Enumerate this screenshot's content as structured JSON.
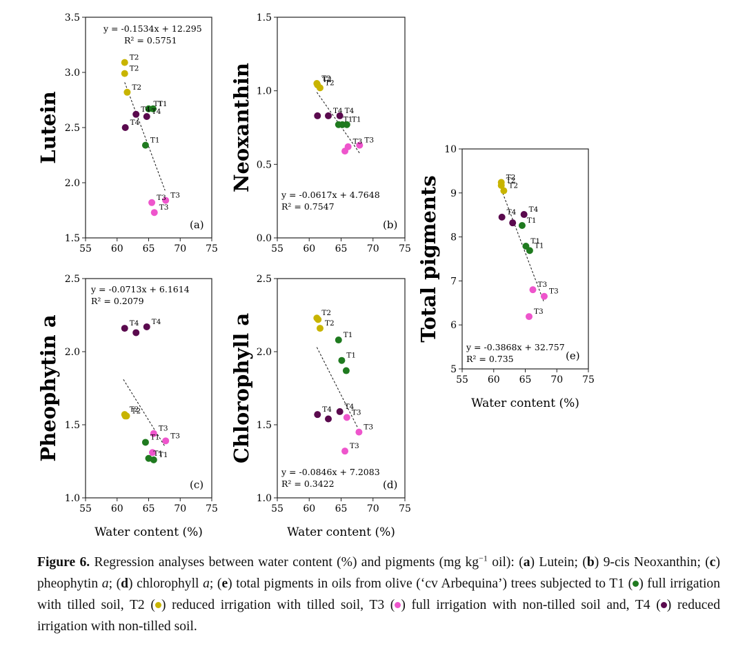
{
  "figure": {
    "colors": {
      "T1": "#1f7a1f",
      "T2": "#c8b400",
      "T3": "#ee55cc",
      "T4": "#5a0a4e"
    },
    "xlabel": "Water content (%)",
    "caption": {
      "label": "Figure 6.",
      "intro": " Regression analyses between water content (%) and pigments (mg kg",
      "sup": "−1",
      "after_sup": " oil): (",
      "a": "a",
      "a_text": ") Lutein; (",
      "b": "b",
      "b_text": ") 9-cis Neoxanthin; (",
      "c": "c",
      "c_text": ") pheophytin ",
      "c_ital": "a",
      "d_pre": "; (",
      "d": "d",
      "d_text": ") chlorophyll ",
      "d_ital": "a",
      "e_pre": "; (",
      "e": "e",
      "e_text": ") total pigments in oils from olive (‘cv Arbequina’) trees subjected to T1 (",
      "t1_text": ") full irrigation with tilled soil, T2 (",
      "t2_text": ") reduced irrigation with tilled soil, T3 (",
      "t3_text": ") full irrigation with non-tilled soil and, T4 (",
      "t4_text": ") reduced irrigation with non-tilled soil."
    }
  },
  "chart_data": [
    {
      "type": "scatter",
      "panel": "(a)",
      "ylabel": "Lutein",
      "xlim": [
        55,
        75
      ],
      "ylim": [
        1.5,
        3.5
      ],
      "xticks": [
        "55",
        "60",
        "65",
        "70",
        "75"
      ],
      "yticks": [
        "1.5",
        "2.0",
        "2.5",
        "3.0",
        "3.5"
      ],
      "equation": "y = -0.1534x + 12.295",
      "r2": "R² = 0.5751",
      "trend": [
        [
          61.2,
          2.91
        ],
        [
          67.6,
          1.93
        ]
      ],
      "points": [
        {
          "g": "T2",
          "x": 61.2,
          "y": 3.09,
          "label": "T2"
        },
        {
          "g": "T2",
          "x": 61.2,
          "y": 2.99,
          "label": "T2"
        },
        {
          "g": "T2",
          "x": 61.6,
          "y": 2.82,
          "label": "T2"
        },
        {
          "g": "T1",
          "x": 65.0,
          "y": 2.67,
          "label": "T1"
        },
        {
          "g": "T1",
          "x": 65.7,
          "y": 2.67,
          "label": "T1"
        },
        {
          "g": "T4",
          "x": 63.0,
          "y": 2.62,
          "label": "T4"
        },
        {
          "g": "T4",
          "x": 64.7,
          "y": 2.6,
          "label": "T4"
        },
        {
          "g": "T4",
          "x": 61.3,
          "y": 2.5,
          "label": "T4"
        },
        {
          "g": "T1",
          "x": 64.5,
          "y": 2.34,
          "label": "T1"
        },
        {
          "g": "T3",
          "x": 67.7,
          "y": 1.84,
          "label": "T3"
        },
        {
          "g": "T3",
          "x": 65.5,
          "y": 1.82,
          "label": "T3"
        },
        {
          "g": "T3",
          "x": 65.9,
          "y": 1.73,
          "label": "T3"
        }
      ]
    },
    {
      "type": "scatter",
      "panel": "(b)",
      "ylabel": "Neoxanthin",
      "xlim": [
        55,
        75
      ],
      "ylim": [
        0,
        1.5
      ],
      "xticks": [
        "55",
        "60",
        "65",
        "70",
        "75"
      ],
      "yticks": [
        "0.0",
        "0.5",
        "1.0",
        "1.5"
      ],
      "equation": "y = -0.0617x + 4.7648",
      "r2": "R² = 0.7547",
      "trend": [
        [
          61.2,
          0.99
        ],
        [
          68.0,
          0.57
        ]
      ],
      "points": [
        {
          "g": "T2",
          "x": 61.2,
          "y": 1.05,
          "label": "T2"
        },
        {
          "g": "T2",
          "x": 61.3,
          "y": 1.04,
          "label": "T2"
        },
        {
          "g": "T2",
          "x": 61.7,
          "y": 1.02,
          "label": "T2"
        },
        {
          "g": "T4",
          "x": 61.3,
          "y": 0.83,
          "label": ""
        },
        {
          "g": "T4",
          "x": 63.0,
          "y": 0.83,
          "label": "T4"
        },
        {
          "g": "T4",
          "x": 64.8,
          "y": 0.83,
          "label": "T4"
        },
        {
          "g": "T1",
          "x": 64.6,
          "y": 0.77,
          "label": "T1"
        },
        {
          "g": "T1",
          "x": 65.2,
          "y": 0.77,
          "label": ""
        },
        {
          "g": "T1",
          "x": 65.9,
          "y": 0.77,
          "label": "T1"
        },
        {
          "g": "T3",
          "x": 67.9,
          "y": 0.63,
          "label": "T3"
        },
        {
          "g": "T3",
          "x": 66.1,
          "y": 0.62,
          "label": "T3"
        },
        {
          "g": "T3",
          "x": 65.6,
          "y": 0.59,
          "label": ""
        }
      ]
    },
    {
      "type": "scatter",
      "panel": "(c)",
      "ylabel": "Pheophytin a",
      "xlim": [
        55,
        75
      ],
      "ylim": [
        1.0,
        2.5
      ],
      "xticks": [
        "55",
        "60",
        "65",
        "70",
        "75"
      ],
      "yticks": [
        "1.0",
        "1.5",
        "2.0",
        "2.5"
      ],
      "equation": "y =  -0.0713x + 6.1614",
      "r2": "R² = 0.2079",
      "trend": [
        [
          61.0,
          1.81
        ],
        [
          67.6,
          1.35
        ]
      ],
      "points": [
        {
          "g": "T4",
          "x": 61.2,
          "y": 2.16,
          "label": "T4"
        },
        {
          "g": "T4",
          "x": 63.0,
          "y": 2.13,
          "label": ""
        },
        {
          "g": "T4",
          "x": 64.7,
          "y": 2.17,
          "label": "T4"
        },
        {
          "g": "T2",
          "x": 61.2,
          "y": 1.57,
          "label": "T2"
        },
        {
          "g": "T2",
          "x": 61.3,
          "y": 1.56,
          "label": ""
        },
        {
          "g": "T2",
          "x": 61.5,
          "y": 1.56,
          "label": "T2"
        },
        {
          "g": "T3",
          "x": 65.8,
          "y": 1.44,
          "label": "T3"
        },
        {
          "g": "T3",
          "x": 67.7,
          "y": 1.39,
          "label": "T3"
        },
        {
          "g": "T3",
          "x": 65.6,
          "y": 1.31,
          "label": ""
        },
        {
          "g": "T1",
          "x": 64.5,
          "y": 1.38,
          "label": "T1"
        },
        {
          "g": "T1",
          "x": 65.0,
          "y": 1.27,
          "label": "T1"
        },
        {
          "g": "T1",
          "x": 65.8,
          "y": 1.26,
          "label": "T1"
        }
      ]
    },
    {
      "type": "scatter",
      "panel": "(d)",
      "ylabel": "Chlorophyll a",
      "xlim": [
        55,
        75
      ],
      "ylim": [
        1.0,
        2.5
      ],
      "xticks": [
        "55",
        "60",
        "65",
        "70",
        "75"
      ],
      "yticks": [
        "1.0",
        "1.5",
        "2.0",
        "2.5"
      ],
      "equation": "y = -0.0846x + 7.2083",
      "r2": "R² = 0.3422",
      "trend": [
        [
          61.2,
          2.03
        ],
        [
          67.6,
          1.48
        ]
      ],
      "points": [
        {
          "g": "T2",
          "x": 61.2,
          "y": 2.23,
          "label": "T2"
        },
        {
          "g": "T2",
          "x": 61.4,
          "y": 2.22,
          "label": ""
        },
        {
          "g": "T2",
          "x": 61.7,
          "y": 2.16,
          "label": "T2"
        },
        {
          "g": "T1",
          "x": 64.6,
          "y": 2.08,
          "label": "T1"
        },
        {
          "g": "T1",
          "x": 65.1,
          "y": 1.94,
          "label": "T1"
        },
        {
          "g": "T1",
          "x": 65.8,
          "y": 1.87,
          "label": ""
        },
        {
          "g": "T4",
          "x": 61.3,
          "y": 1.57,
          "label": "T4"
        },
        {
          "g": "T4",
          "x": 63.0,
          "y": 1.54,
          "label": ""
        },
        {
          "g": "T4",
          "x": 64.8,
          "y": 1.59,
          "label": "T4"
        },
        {
          "g": "T3",
          "x": 65.9,
          "y": 1.55,
          "label": "T3"
        },
        {
          "g": "T3",
          "x": 67.8,
          "y": 1.45,
          "label": "T3"
        },
        {
          "g": "T3",
          "x": 65.6,
          "y": 1.32,
          "label": "T3"
        }
      ]
    },
    {
      "type": "scatter",
      "panel": "(e)",
      "ylabel": "Total pigments",
      "xlim": [
        55,
        75
      ],
      "ylim": [
        5,
        10
      ],
      "xticks": [
        "55",
        "60",
        "65",
        "70",
        "75"
      ],
      "yticks": [
        "5",
        "6",
        "7",
        "8",
        "9",
        "10"
      ],
      "equation": "y = -0.3868x + 32.757",
      "r2": "R² = 0.735",
      "trend": [
        [
          61.0,
          9.16
        ],
        [
          67.9,
          6.54
        ]
      ],
      "points": [
        {
          "g": "T2",
          "x": 61.2,
          "y": 9.24,
          "label": "T2"
        },
        {
          "g": "T2",
          "x": 61.2,
          "y": 9.17,
          "label": "T2"
        },
        {
          "g": "T2",
          "x": 61.6,
          "y": 9.05,
          "label": "T2"
        },
        {
          "g": "T4",
          "x": 61.3,
          "y": 8.45,
          "label": "T4"
        },
        {
          "g": "T4",
          "x": 64.8,
          "y": 8.51,
          "label": "T4"
        },
        {
          "g": "T4",
          "x": 63.0,
          "y": 8.32,
          "label": ""
        },
        {
          "g": "T1",
          "x": 64.5,
          "y": 8.26,
          "label": "T1"
        },
        {
          "g": "T1",
          "x": 65.1,
          "y": 7.79,
          "label": "T1"
        },
        {
          "g": "T1",
          "x": 65.7,
          "y": 7.69,
          "label": "T1"
        },
        {
          "g": "T3",
          "x": 66.2,
          "y": 6.8,
          "label": "T3"
        },
        {
          "g": "T3",
          "x": 68.0,
          "y": 6.65,
          "label": "T3"
        },
        {
          "g": "T3",
          "x": 65.6,
          "y": 6.19,
          "label": "T3"
        }
      ]
    }
  ]
}
